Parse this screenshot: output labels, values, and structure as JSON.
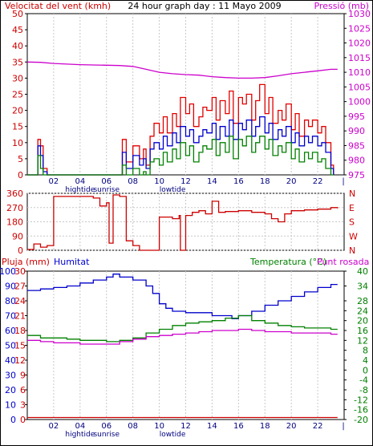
{
  "chart_data": [
    {
      "type": "line",
      "title": "24 hour graph day : 11 Mayo 2009",
      "left_axis_label": "Velocitat del vent (kmh)",
      "right_axis_label": "Pressió (mb)",
      "x_ticks": [
        "02",
        "04",
        "06",
        "08",
        "10",
        "12",
        "14",
        "16",
        "18",
        "20",
        "22"
      ],
      "x_annotations": [
        {
          "hour": 4,
          "text": "hightide"
        },
        {
          "hour": 6,
          "text": "sunrise"
        },
        {
          "hour": 11,
          "text": "lowtide"
        }
      ],
      "left_axis": {
        "min": 0,
        "max": 50,
        "ticks": [
          0,
          5,
          10,
          15,
          20,
          25,
          30,
          35,
          40,
          45,
          50
        ]
      },
      "right_axis": {
        "min": 975,
        "max": 1030,
        "ticks": [
          975,
          980,
          985,
          990,
          995,
          1000,
          1005,
          1010,
          1015,
          1020,
          1025,
          1030
        ]
      },
      "series": [
        {
          "name": "gust",
          "color": "#e00000",
          "x": [
            0,
            0.5,
            0.8,
            1,
            1.2,
            1.5,
            5,
            7,
            7.2,
            7.5,
            8,
            8.5,
            8.8,
            9,
            9.3,
            9.6,
            10,
            10.3,
            10.6,
            11,
            11.3,
            11.6,
            12,
            12.3,
            12.6,
            13,
            13.3,
            13.6,
            14,
            14.3,
            14.6,
            15,
            15.3,
            15.6,
            16,
            16.3,
            16.6,
            17,
            17.3,
            17.6,
            18,
            18.3,
            18.6,
            19,
            19.3,
            19.6,
            20,
            20.3,
            20.6,
            21,
            21.3,
            21.6,
            22,
            22.3,
            22.6,
            23,
            23.2
          ],
          "y": [
            0,
            0,
            11,
            9,
            2,
            0,
            0,
            0,
            11,
            4,
            9,
            5,
            8,
            3,
            12,
            16,
            13,
            18,
            13,
            19,
            15,
            24,
            19,
            22,
            15,
            18,
            21,
            20,
            24,
            17,
            23,
            19,
            26,
            16,
            24,
            22,
            25,
            17,
            23,
            28,
            19,
            24,
            16,
            20,
            17,
            22,
            14,
            19,
            12,
            17,
            15,
            17,
            13,
            15,
            10,
            3,
            0
          ]
        },
        {
          "name": "wind",
          "color": "#0000cc",
          "x": [
            0,
            0.5,
            0.8,
            1,
            1.2,
            1.5,
            5,
            7,
            7.2,
            7.5,
            8,
            8.5,
            8.8,
            9,
            9.3,
            9.6,
            10,
            10.3,
            10.6,
            11,
            11.3,
            11.6,
            12,
            12.3,
            12.6,
            13,
            13.3,
            13.6,
            14,
            14.3,
            14.6,
            15,
            15.3,
            15.6,
            16,
            16.3,
            16.6,
            17,
            17.3,
            17.6,
            18,
            18.3,
            18.6,
            19,
            19.3,
            19.6,
            20,
            20.3,
            20.6,
            21,
            21.3,
            21.6,
            22,
            22.3,
            22.6,
            23,
            23.2
          ],
          "y": [
            0,
            0,
            9,
            6,
            1,
            0,
            0,
            0,
            7,
            2,
            6,
            3,
            5,
            2,
            8,
            10,
            8,
            12,
            9,
            13,
            10,
            15,
            12,
            14,
            10,
            12,
            14,
            13,
            16,
            11,
            15,
            12,
            17,
            11,
            16,
            14,
            17,
            12,
            15,
            18,
            13,
            16,
            11,
            14,
            12,
            15,
            10,
            13,
            9,
            12,
            10,
            12,
            9,
            10,
            7,
            2,
            0
          ]
        },
        {
          "name": "min",
          "color": "#008000",
          "x": [
            0,
            0.5,
            0.8,
            1,
            1.2,
            1.5,
            5,
            7,
            7.2,
            7.5,
            8,
            8.5,
            8.8,
            9,
            9.3,
            9.6,
            10,
            10.3,
            10.6,
            11,
            11.3,
            11.6,
            12,
            12.3,
            12.6,
            13,
            13.3,
            13.6,
            14,
            14.3,
            14.6,
            15,
            15.3,
            15.6,
            16,
            16.3,
            16.6,
            17,
            17.3,
            17.6,
            18,
            18.3,
            18.6,
            19,
            19.3,
            19.6,
            20,
            20.3,
            20.6,
            21,
            21.3,
            21.6,
            22,
            22.3,
            22.6,
            23,
            23.2
          ],
          "y": [
            0,
            0,
            6,
            2,
            0,
            0,
            0,
            0,
            3,
            0,
            2,
            0,
            1,
            0,
            4,
            5,
            3,
            7,
            4,
            8,
            5,
            10,
            6,
            9,
            4,
            7,
            9,
            8,
            11,
            6,
            10,
            7,
            12,
            5,
            11,
            9,
            12,
            7,
            10,
            12,
            8,
            11,
            6,
            9,
            7,
            10,
            5,
            8,
            4,
            7,
            5,
            7,
            4,
            5,
            2,
            0,
            0
          ]
        },
        {
          "name": "pressure",
          "color": "#cc00cc",
          "axis": "right",
          "x": [
            0,
            1,
            2,
            3,
            4,
            5,
            6,
            7,
            8,
            9,
            10,
            11,
            12,
            13,
            14,
            15,
            16,
            17,
            18,
            19,
            20,
            21,
            22,
            23,
            23.5
          ],
          "y": [
            1013.5,
            1013.4,
            1013,
            1012.8,
            1012.6,
            1012.5,
            1012.4,
            1012.3,
            1012,
            1011,
            1010,
            1009.5,
            1009.2,
            1009,
            1008.5,
            1008.2,
            1008,
            1008,
            1008.2,
            1008.8,
            1009.5,
            1010,
            1010.5,
            1011,
            1011
          ]
        }
      ]
    },
    {
      "type": "line",
      "y_ticks": [
        0,
        90,
        180,
        270,
        360
      ],
      "right_labels": [
        "N",
        "W",
        "S",
        "E",
        "N"
      ],
      "x_ticks": [
        "02",
        "04",
        "06",
        "08",
        "10",
        "12",
        "14",
        "16",
        "18",
        "20",
        "22"
      ],
      "axis": {
        "min": 0,
        "max": 360
      },
      "series": [
        {
          "name": "direction",
          "color": "#cc0000",
          "x": [
            0,
            0.5,
            1,
            1.5,
            2,
            3,
            4,
            5,
            5.5,
            6,
            6.2,
            6.5,
            7,
            7.5,
            8,
            8.5,
            9,
            10,
            11,
            11.5,
            11.6,
            12,
            12.5,
            13,
            13.5,
            14,
            14.5,
            15,
            16,
            17,
            18,
            18.5,
            19,
            19.5,
            20,
            21,
            22,
            23,
            23.5
          ],
          "y": [
            5,
            40,
            20,
            30,
            340,
            340,
            340,
            330,
            280,
            300,
            45,
            350,
            340,
            60,
            30,
            0,
            0,
            210,
            200,
            220,
            0,
            220,
            240,
            250,
            230,
            310,
            240,
            245,
            250,
            240,
            230,
            200,
            180,
            230,
            250,
            255,
            260,
            270,
            265
          ]
        }
      ]
    },
    {
      "type": "line",
      "labels": {
        "rain": "Pluja (mm)",
        "humidity": "Humitat",
        "temperature": "Temperatura (°C)",
        "dewpoint": "Punt rosada"
      },
      "x_ticks": [
        "02",
        "04",
        "06",
        "08",
        "10",
        "12",
        "14",
        "16",
        "18",
        "20",
        "22"
      ],
      "x_annotations": [
        {
          "hour": 4,
          "text": "hightide"
        },
        {
          "hour": 6,
          "text": "sunrise"
        },
        {
          "hour": 11,
          "text": "lowtide"
        }
      ],
      "rain_axis": {
        "min": 0,
        "max": 30,
        "ticks": [
          0,
          3,
          6,
          9,
          12,
          15,
          18,
          21,
          24,
          27,
          30
        ]
      },
      "humidity_axis": {
        "min": 0,
        "max": 100,
        "ticks": [
          0,
          10,
          20,
          30,
          40,
          50,
          60,
          70,
          80,
          90,
          100
        ]
      },
      "temperature_axis": {
        "min": -20,
        "max": 40,
        "ticks": [
          -20,
          -16,
          -12,
          -8,
          -4,
          0,
          4,
          8,
          12,
          16,
          20,
          24,
          28,
          30,
          34,
          40
        ]
      },
      "series": [
        {
          "name": "rain",
          "color": "#cc0000",
          "axis": "rain",
          "x": [
            0,
            23.5
          ],
          "y": [
            0.4,
            0.4
          ]
        },
        {
          "name": "humidity",
          "color": "#0000cc",
          "axis": "humidity",
          "x": [
            0,
            1,
            2,
            3,
            4,
            5,
            6,
            6.5,
            7,
            8,
            9,
            9.5,
            10,
            10.5,
            11,
            12,
            13,
            14,
            15,
            15.5,
            16,
            17,
            18,
            19,
            20,
            21,
            22,
            23,
            23.5
          ],
          "y": [
            87,
            88,
            89,
            90,
            92,
            94,
            96,
            98,
            96,
            94,
            90,
            85,
            78,
            75,
            73,
            72,
            72,
            70,
            70,
            68,
            70,
            73,
            77,
            80,
            83,
            86,
            89,
            91,
            91
          ]
        },
        {
          "name": "temperature",
          "color": "#008000",
          "axis": "temperature",
          "x": [
            0,
            1,
            2,
            3,
            4,
            5,
            6,
            7,
            8,
            9,
            10,
            11,
            12,
            13,
            14,
            15,
            16,
            17,
            18,
            19,
            20,
            21,
            22,
            23,
            23.5
          ],
          "y": [
            14,
            13,
            13,
            12.5,
            12,
            12,
            11.5,
            12,
            13,
            15,
            16.5,
            18,
            19,
            19.5,
            20,
            21,
            22,
            20,
            19,
            18,
            17.5,
            17,
            17,
            16.5,
            16.5
          ]
        },
        {
          "name": "dewpoint",
          "color": "#cc00cc",
          "axis": "temperature",
          "x": [
            0,
            1,
            2,
            3,
            4,
            5,
            6,
            7,
            8,
            9,
            10,
            11,
            12,
            13,
            14,
            15,
            16,
            17,
            18,
            19,
            20,
            21,
            22,
            23,
            23.5
          ],
          "y": [
            12,
            11.5,
            11,
            11,
            10.5,
            10.5,
            10.5,
            11.5,
            12.5,
            13.5,
            14,
            14.5,
            15,
            15.5,
            16,
            16,
            16.5,
            16,
            15.5,
            15.5,
            15,
            15,
            15,
            14.5,
            14.5
          ]
        }
      ]
    }
  ]
}
